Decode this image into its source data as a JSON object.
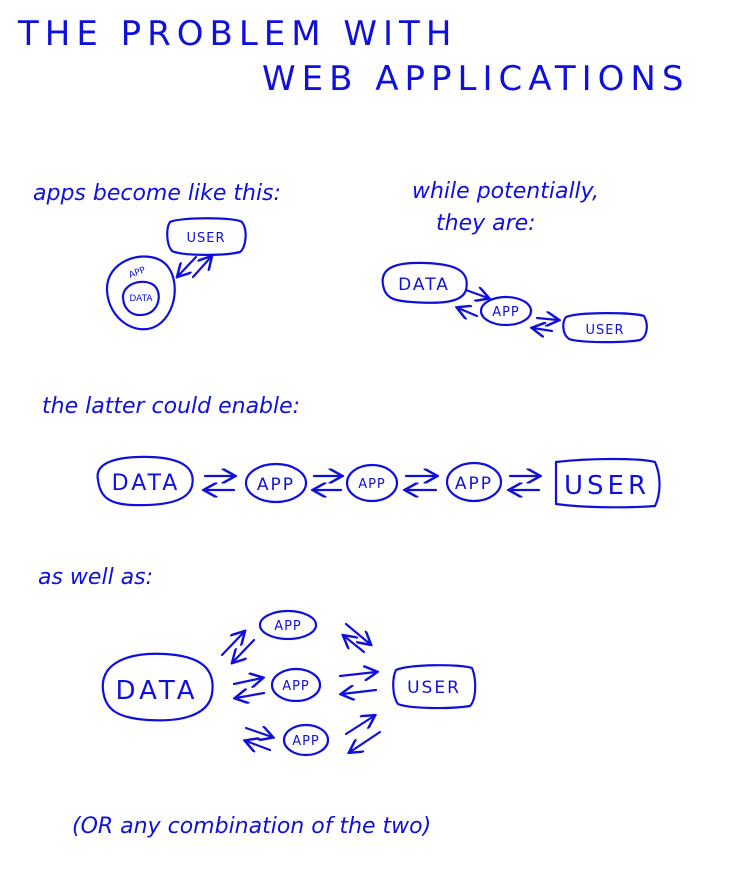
{
  "title": {
    "line1": "THE PROBLEM WITH",
    "line2": "WEB APPLICATIONS"
  },
  "section1": {
    "caption": "apps become like this:",
    "user": "USER",
    "app": "APP",
    "data": "DATA"
  },
  "section2": {
    "caption_line1": "while potentially,",
    "caption_line2": "they are:",
    "data": "DATA",
    "app": "APP",
    "user": "USER"
  },
  "section3": {
    "caption": "the latter could enable:",
    "data": "DATA",
    "app1": "APP",
    "app2": "APP",
    "app3": "APP",
    "user": "USER"
  },
  "section4": {
    "caption": "as well as:",
    "data": "DATA",
    "app_top": "APP",
    "app_mid": "APP",
    "app_bottom": "APP",
    "user": "USER"
  },
  "footer": {
    "note": "(OR any combination of the two)"
  },
  "colors": {
    "ink": "#1010dc",
    "background": "#ffffff"
  }
}
